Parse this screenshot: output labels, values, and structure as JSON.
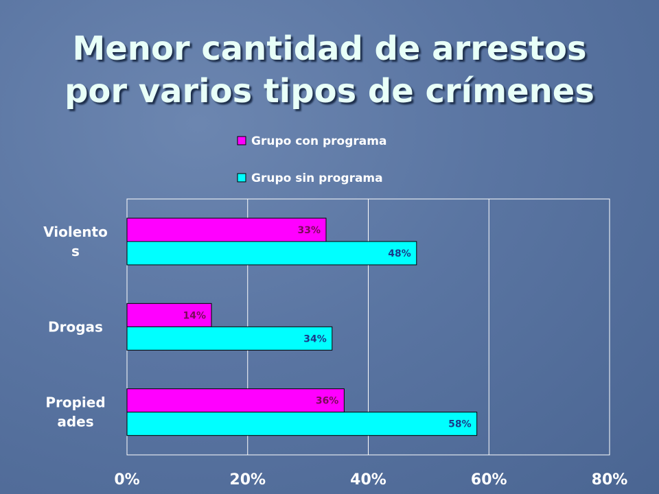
{
  "slide": {
    "title_line1": "Menor cantidad de arrestos",
    "title_line2": "por varios tipos de crímenes"
  },
  "chart_data": {
    "type": "bar",
    "orientation": "horizontal",
    "title": "Menor cantidad de arrestos por varios tipos de crímenes",
    "categories": [
      "Violentos",
      "Drogas",
      "Propiedades"
    ],
    "category_display": [
      [
        "Violento",
        "s"
      ],
      [
        "Drogas"
      ],
      [
        "Propied",
        "ades"
      ]
    ],
    "series": [
      {
        "name": "Grupo con programa",
        "values": [
          33,
          14,
          36
        ],
        "labels": [
          "33%",
          "14%",
          "36%"
        ],
        "color": "#ff00ff"
      },
      {
        "name": "Grupo sin programa",
        "values": [
          48,
          34,
          58
        ],
        "labels": [
          "48%",
          "34%",
          "58%"
        ],
        "color": "#00ffff"
      }
    ],
    "xlim": [
      0,
      80
    ],
    "xticks": [
      "0%",
      "20%",
      "40%",
      "60%",
      "80%"
    ],
    "grid": true,
    "legend_position": "top",
    "xlabel": "",
    "ylabel": ""
  }
}
